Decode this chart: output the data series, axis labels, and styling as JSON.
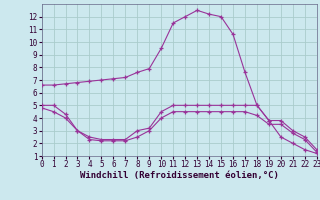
{
  "bg_color": "#cce8ee",
  "grid_color": "#aacccc",
  "line_color": "#993399",
  "xlabel": "Windchill (Refroidissement éolien,°C)",
  "xlabel_fontsize": 6.5,
  "xlim": [
    0,
    23
  ],
  "ylim": [
    1,
    13
  ],
  "xticks": [
    0,
    1,
    2,
    3,
    4,
    5,
    6,
    7,
    8,
    9,
    10,
    11,
    12,
    13,
    14,
    15,
    16,
    17,
    18,
    19,
    20,
    21,
    22,
    23
  ],
  "yticks": [
    1,
    2,
    3,
    4,
    5,
    6,
    7,
    8,
    9,
    10,
    11,
    12
  ],
  "series": [
    {
      "x": [
        0,
        1,
        2,
        3,
        4,
        5,
        6,
        7,
        8,
        9,
        10,
        11,
        12,
        13,
        14,
        15,
        16,
        17,
        18,
        19,
        20,
        21,
        22,
        23
      ],
      "y": [
        6.6,
        6.6,
        6.7,
        6.8,
        6.9,
        7.0,
        7.1,
        7.2,
        7.6,
        7.9,
        9.5,
        11.5,
        12.0,
        12.5,
        12.2,
        12.0,
        10.6,
        7.6,
        5.0,
        3.8,
        2.5,
        2.0,
        1.5,
        1.2
      ]
    },
    {
      "x": [
        0,
        1,
        2,
        3,
        4,
        5,
        6,
        7,
        8,
        9,
        10,
        11,
        12,
        13,
        14,
        15,
        16,
        17,
        18,
        19,
        20,
        21,
        22,
        23
      ],
      "y": [
        5.0,
        5.0,
        4.3,
        3.0,
        2.5,
        2.3,
        2.3,
        2.3,
        3.0,
        3.2,
        4.5,
        5.0,
        5.0,
        5.0,
        5.0,
        5.0,
        5.0,
        5.0,
        5.0,
        3.8,
        3.8,
        3.0,
        2.5,
        1.5
      ]
    },
    {
      "x": [
        0,
        1,
        2,
        3,
        4,
        5,
        6,
        7,
        8,
        9,
        10,
        11,
        12,
        13,
        14,
        15,
        16,
        17,
        18,
        19,
        20,
        21,
        22,
        23
      ],
      "y": [
        4.8,
        4.5,
        4.0,
        3.0,
        2.3,
        2.2,
        2.2,
        2.2,
        2.5,
        3.0,
        4.0,
        4.5,
        4.5,
        4.5,
        4.5,
        4.5,
        4.5,
        4.5,
        4.2,
        3.5,
        3.5,
        2.8,
        2.3,
        1.3
      ]
    }
  ]
}
